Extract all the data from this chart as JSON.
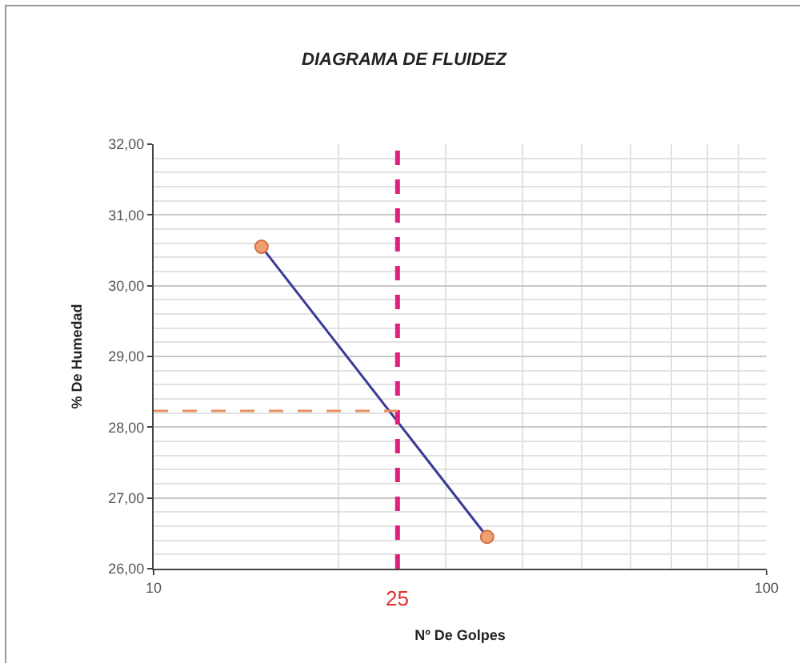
{
  "chart_data": {
    "type": "line",
    "title": "DIAGRAMA DE FLUIDEZ",
    "xlabel": "Nº De Golpes",
    "ylabel": "% De Humedad",
    "x": [
      15,
      35
    ],
    "series": [
      {
        "color": "#3a3a98",
        "values": [
          30.55,
          26.45
        ]
      }
    ],
    "marker": "circle",
    "line_style": "solid",
    "log": "x",
    "xlim": [
      10,
      100
    ],
    "xticks": [
      10,
      100
    ],
    "ylim": [
      26,
      32
    ],
    "yticks": [
      {
        "value": 26,
        "label": "26,00"
      },
      {
        "value": 27,
        "label": "27,00"
      },
      {
        "value": 28,
        "label": "28,00"
      },
      {
        "value": 29,
        "label": "29,00"
      },
      {
        "value": 30,
        "label": "30,00"
      },
      {
        "value": 31,
        "label": "31,00"
      },
      {
        "value": 32,
        "label": "32,00"
      }
    ],
    "grid": true,
    "ref_lines": [
      {
        "axis": "x",
        "value": 25,
        "label": "25",
        "color": "#e0207a",
        "line_style": "dashed"
      },
      {
        "axis": "y",
        "value": 28.23,
        "color": "#e89060",
        "line_style": "dashed"
      }
    ]
  }
}
